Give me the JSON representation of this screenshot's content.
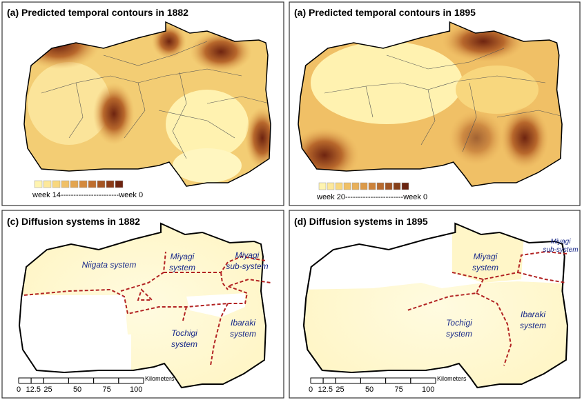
{
  "panels": [
    {
      "title": "(a) Predicted temporal contours in 1882",
      "legend": {
        "label": "week 14-----------------------week 0",
        "colors": [
          "#fff4b0",
          "#fde89a",
          "#f8d77e",
          "#f0c066",
          "#e3a550",
          "#d48a3e",
          "#bf6e2e",
          "#a65522",
          "#8c3c18",
          "#6e2410"
        ]
      }
    },
    {
      "title": "(a) Predicted temporal contours in 1895",
      "legend": {
        "label": "week 20-----------------------week 0",
        "colors": [
          "#fff4b0",
          "#fde89a",
          "#f8d77e",
          "#f0c066",
          "#e8b05a",
          "#dc9a48",
          "#cc823a",
          "#b86a2e",
          "#a05424",
          "#86401a",
          "#6a2410"
        ]
      }
    },
    {
      "title": "(c) Diffusion systems in 1882",
      "systems": [
        {
          "lines": [
            "Niigata system"
          ]
        },
        {
          "lines": [
            "Miyagi",
            "system"
          ]
        },
        {
          "lines": [
            "Miyagi",
            "sub-system"
          ]
        },
        {
          "lines": [
            "Tochigi",
            "system"
          ]
        },
        {
          "lines": [
            "Ibaraki",
            "system"
          ]
        }
      ],
      "scale": {
        "unit": "Kilometers",
        "labels": [
          "0",
          "12.5",
          "25",
          "50",
          "75",
          "100"
        ]
      }
    },
    {
      "title": "(d) Diffusion systems in 1895",
      "systems": [
        {
          "lines": [
            "Miyagi",
            "system"
          ]
        },
        {
          "lines": [
            "Miyagi",
            "sub-system"
          ]
        },
        {
          "lines": [
            "Tochigi",
            "system"
          ]
        },
        {
          "lines": [
            "Ibaraki",
            "system"
          ]
        }
      ],
      "scale": {
        "unit": "Kilometers",
        "labels": [
          "0",
          "12.5",
          "25",
          "50",
          "75",
          "100"
        ]
      }
    }
  ]
}
